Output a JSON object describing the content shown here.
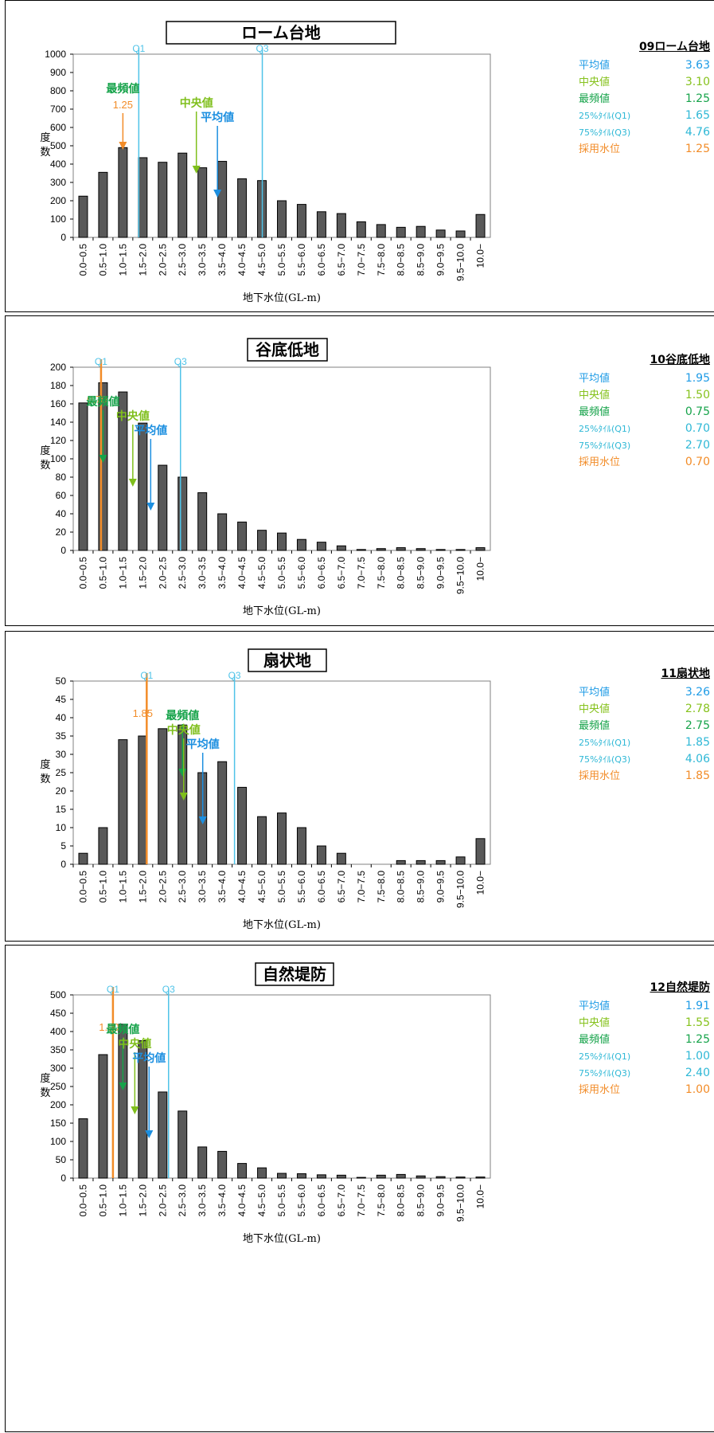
{
  "chart_data": [
    {
      "type": "bar",
      "title": "ローム台地",
      "xlabel": "地下水位(GL-m)",
      "ylabel": "度数",
      "ylim": [
        0,
        1000
      ],
      "yticks": [
        0,
        100,
        200,
        300,
        400,
        500,
        600,
        700,
        800,
        900,
        1000
      ],
      "categories": [
        "0.0-0.5",
        "0.5-1.0",
        "1.0-1.5",
        "1.5-2.0",
        "2.0-2.5",
        "2.5-3.0",
        "3.0-3.5",
        "3.5-4.0",
        "4.0-4.5",
        "4.5-5.0",
        "5.0-5.5",
        "5.5-6.0",
        "6.0-6.5",
        "6.5-7.0",
        "7.0-7.5",
        "7.5-8.0",
        "8.0-8.5",
        "8.5-9.0",
        "9.0-9.5",
        "9.5-10.0",
        "10.0-"
      ],
      "values": [
        225,
        355,
        490,
        435,
        410,
        460,
        380,
        415,
        320,
        310,
        200,
        180,
        140,
        130,
        85,
        70,
        55,
        60,
        40,
        35,
        125
      ],
      "vlines": [
        {
          "label": "Q1",
          "x": 1.65,
          "color": "#4fc3e8"
        },
        {
          "label": "Q3",
          "x": 4.76,
          "color": "#4fc3e8"
        }
      ],
      "annotations": [
        {
          "label": "最頻値",
          "sub": "1.25",
          "x": 1.25,
          "color": "#16a34a",
          "subcolor": "#f28c28",
          "arrow_color": "#f28c28"
        },
        {
          "label": "中央値",
          "x": 3.1,
          "color": "#7fbf1c",
          "arrow_color": "#7fbf1c"
        },
        {
          "label": "平均値",
          "x": 3.63,
          "color": "#1c8fe0",
          "arrow_color": "#1c8fe0"
        }
      ],
      "stats": {
        "header": "09ローム台地",
        "rows": [
          {
            "label": "平均値",
            "value": "3.63",
            "color": "#1e9be6"
          },
          {
            "label": "中央値",
            "value": "3.10",
            "color": "#86c21d"
          },
          {
            "label": "最頻値",
            "value": "1.25",
            "color": "#16a34a"
          },
          {
            "label": "25%ﾀｲﾙ(Q1)",
            "value": "1.65",
            "color": "#2fb8d6"
          },
          {
            "label": "75%ﾀｲﾙ(Q3)",
            "value": "4.76",
            "color": "#2fb8d6"
          },
          {
            "label": "採用水位",
            "value": "1.25",
            "color": "#f28c28"
          }
        ]
      }
    },
    {
      "type": "bar",
      "title": "谷底低地",
      "xlabel": "地下水位(GL-m)",
      "ylabel": "度数",
      "ylim": [
        0,
        200
      ],
      "yticks": [
        0,
        20,
        40,
        60,
        80,
        100,
        120,
        140,
        160,
        180,
        200
      ],
      "categories": [
        "0.0-0.5",
        "0.5-1.0",
        "1.0-1.5",
        "1.5-2.0",
        "2.0-2.5",
        "2.5-3.0",
        "3.0-3.5",
        "3.5-4.0",
        "4.0-4.5",
        "4.5-5.0",
        "5.0-5.5",
        "5.5-6.0",
        "6.0-6.5",
        "6.5-7.0",
        "7.0-7.5",
        "7.5-8.0",
        "8.0-8.5",
        "8.5-9.0",
        "9.0-9.5",
        "9.5-10.0",
        "10.0-"
      ],
      "values": [
        161,
        183,
        173,
        139,
        93,
        80,
        63,
        40,
        31,
        22,
        19,
        12,
        9,
        5,
        1,
        2,
        3,
        2,
        1,
        1,
        3
      ],
      "vlines": [
        {
          "label": "Q1",
          "x": 0.7,
          "color": "#4fc3e8",
          "orange": "0.70"
        },
        {
          "label": "Q3",
          "x": 2.7,
          "color": "#4fc3e8"
        }
      ],
      "annotations": [
        {
          "label": "最頻値",
          "x": 0.75,
          "color": "#16a34a",
          "arrow_color": "#16a34a"
        },
        {
          "label": "中央値",
          "x": 1.5,
          "color": "#7fbf1c",
          "arrow_color": "#7fbf1c"
        },
        {
          "label": "平均値",
          "x": 1.95,
          "color": "#1c8fe0",
          "arrow_color": "#1c8fe0"
        }
      ],
      "stats": {
        "header": "10谷底低地",
        "rows": [
          {
            "label": "平均値",
            "value": "1.95",
            "color": "#1e9be6"
          },
          {
            "label": "中央値",
            "value": "1.50",
            "color": "#86c21d"
          },
          {
            "label": "最頻値",
            "value": "0.75",
            "color": "#16a34a"
          },
          {
            "label": "25%ﾀｲﾙ(Q1)",
            "value": "0.70",
            "color": "#2fb8d6"
          },
          {
            "label": "75%ﾀｲﾙ(Q3)",
            "value": "2.70",
            "color": "#2fb8d6"
          },
          {
            "label": "採用水位",
            "value": "0.70",
            "color": "#f28c28"
          }
        ]
      }
    },
    {
      "type": "bar",
      "title": "扇状地",
      "xlabel": "地下水位(GL-m)",
      "ylabel": "度数",
      "ylim": [
        0,
        50
      ],
      "yticks": [
        0,
        5,
        10,
        15,
        20,
        25,
        30,
        35,
        40,
        45,
        50
      ],
      "categories": [
        "0.0-0.5",
        "0.5-1.0",
        "1.0-1.5",
        "1.5-2.0",
        "2.0-2.5",
        "2.5-3.0",
        "3.0-3.5",
        "3.5-4.0",
        "4.0-4.5",
        "4.5-5.0",
        "5.0-5.5",
        "5.5-6.0",
        "6.0-6.5",
        "6.5-7.0",
        "7.0-7.5",
        "7.5-8.0",
        "8.0-8.5",
        "8.5-9.0",
        "9.0-9.5",
        "9.5-10.0",
        "10.0-"
      ],
      "values": [
        3,
        10,
        34,
        35,
        37,
        38,
        25,
        28,
        21,
        13,
        14,
        10,
        5,
        3,
        0,
        0,
        1,
        1,
        1,
        2,
        7
      ],
      "vlines": [
        {
          "label": "Q1",
          "x": 1.85,
          "color": "#4fc3e8",
          "orange": "1.85"
        },
        {
          "label": "Q3",
          "x": 4.06,
          "color": "#4fc3e8"
        }
      ],
      "annotations": [
        {
          "label": "最頻値",
          "x": 2.75,
          "color": "#16a34a",
          "arrow_color": "#16a34a"
        },
        {
          "label": "中央値",
          "x": 2.78,
          "color": "#7fbf1c",
          "arrow_color": "#7fbf1c"
        },
        {
          "label": "平均値",
          "x": 3.26,
          "color": "#1c8fe0",
          "arrow_color": "#1c8fe0"
        }
      ],
      "stats": {
        "header": "11扇状地",
        "rows": [
          {
            "label": "平均値",
            "value": "3.26",
            "color": "#1e9be6"
          },
          {
            "label": "中央値",
            "value": "2.78",
            "color": "#86c21d"
          },
          {
            "label": "最頻値",
            "value": "2.75",
            "color": "#16a34a"
          },
          {
            "label": "25%ﾀｲﾙ(Q1)",
            "value": "1.85",
            "color": "#2fb8d6"
          },
          {
            "label": "75%ﾀｲﾙ(Q3)",
            "value": "4.06",
            "color": "#2fb8d6"
          },
          {
            "label": "採用水位",
            "value": "1.85",
            "color": "#f28c28"
          }
        ]
      }
    },
    {
      "type": "bar",
      "title": "自然堤防",
      "xlabel": "地下水位(GL-m)",
      "ylabel": "度数",
      "ylim": [
        0,
        500
      ],
      "yticks": [
        0,
        50,
        100,
        150,
        200,
        250,
        300,
        350,
        400,
        450,
        500
      ],
      "categories": [
        "0.0-0.5",
        "0.5-1.0",
        "1.0-1.5",
        "1.5-2.0",
        "2.0-2.5",
        "2.5-3.0",
        "3.0-3.5",
        "3.5-4.0",
        "4.0-4.5",
        "4.5-5.0",
        "5.0-5.5",
        "5.5-6.0",
        "6.0-6.5",
        "6.5-7.0",
        "7.0-7.5",
        "7.5-8.0",
        "8.0-8.5",
        "8.5-9.0",
        "9.0-9.5",
        "9.5-10.0",
        "10.0-"
      ],
      "values": [
        162,
        337,
        420,
        375,
        235,
        183,
        85,
        73,
        40,
        28,
        13,
        12,
        9,
        8,
        2,
        8,
        10,
        6,
        4,
        3,
        3
      ],
      "vlines": [
        {
          "label": "Q1",
          "x": 1.0,
          "color": "#4fc3e8",
          "orange": "1.00"
        },
        {
          "label": "Q3",
          "x": 2.4,
          "color": "#4fc3e8"
        }
      ],
      "annotations": [
        {
          "label": "最頻値",
          "x": 1.25,
          "color": "#16a34a",
          "arrow_color": "#16a34a"
        },
        {
          "label": "中央値",
          "x": 1.55,
          "color": "#7fbf1c",
          "arrow_color": "#7fbf1c"
        },
        {
          "label": "平均値",
          "x": 1.91,
          "color": "#1c8fe0",
          "arrow_color": "#1c8fe0"
        }
      ],
      "stats": {
        "header": "12自然堤防",
        "rows": [
          {
            "label": "平均値",
            "value": "1.91",
            "color": "#1e9be6"
          },
          {
            "label": "中央値",
            "value": "1.55",
            "color": "#86c21d"
          },
          {
            "label": "最頻値",
            "value": "1.25",
            "color": "#16a34a"
          },
          {
            "label": "25%ﾀｲﾙ(Q1)",
            "value": "1.00",
            "color": "#2fb8d6"
          },
          {
            "label": "75%ﾀｲﾙ(Q3)",
            "value": "2.40",
            "color": "#2fb8d6"
          },
          {
            "label": "採用水位",
            "value": "1.00",
            "color": "#f28c28"
          }
        ]
      }
    }
  ]
}
